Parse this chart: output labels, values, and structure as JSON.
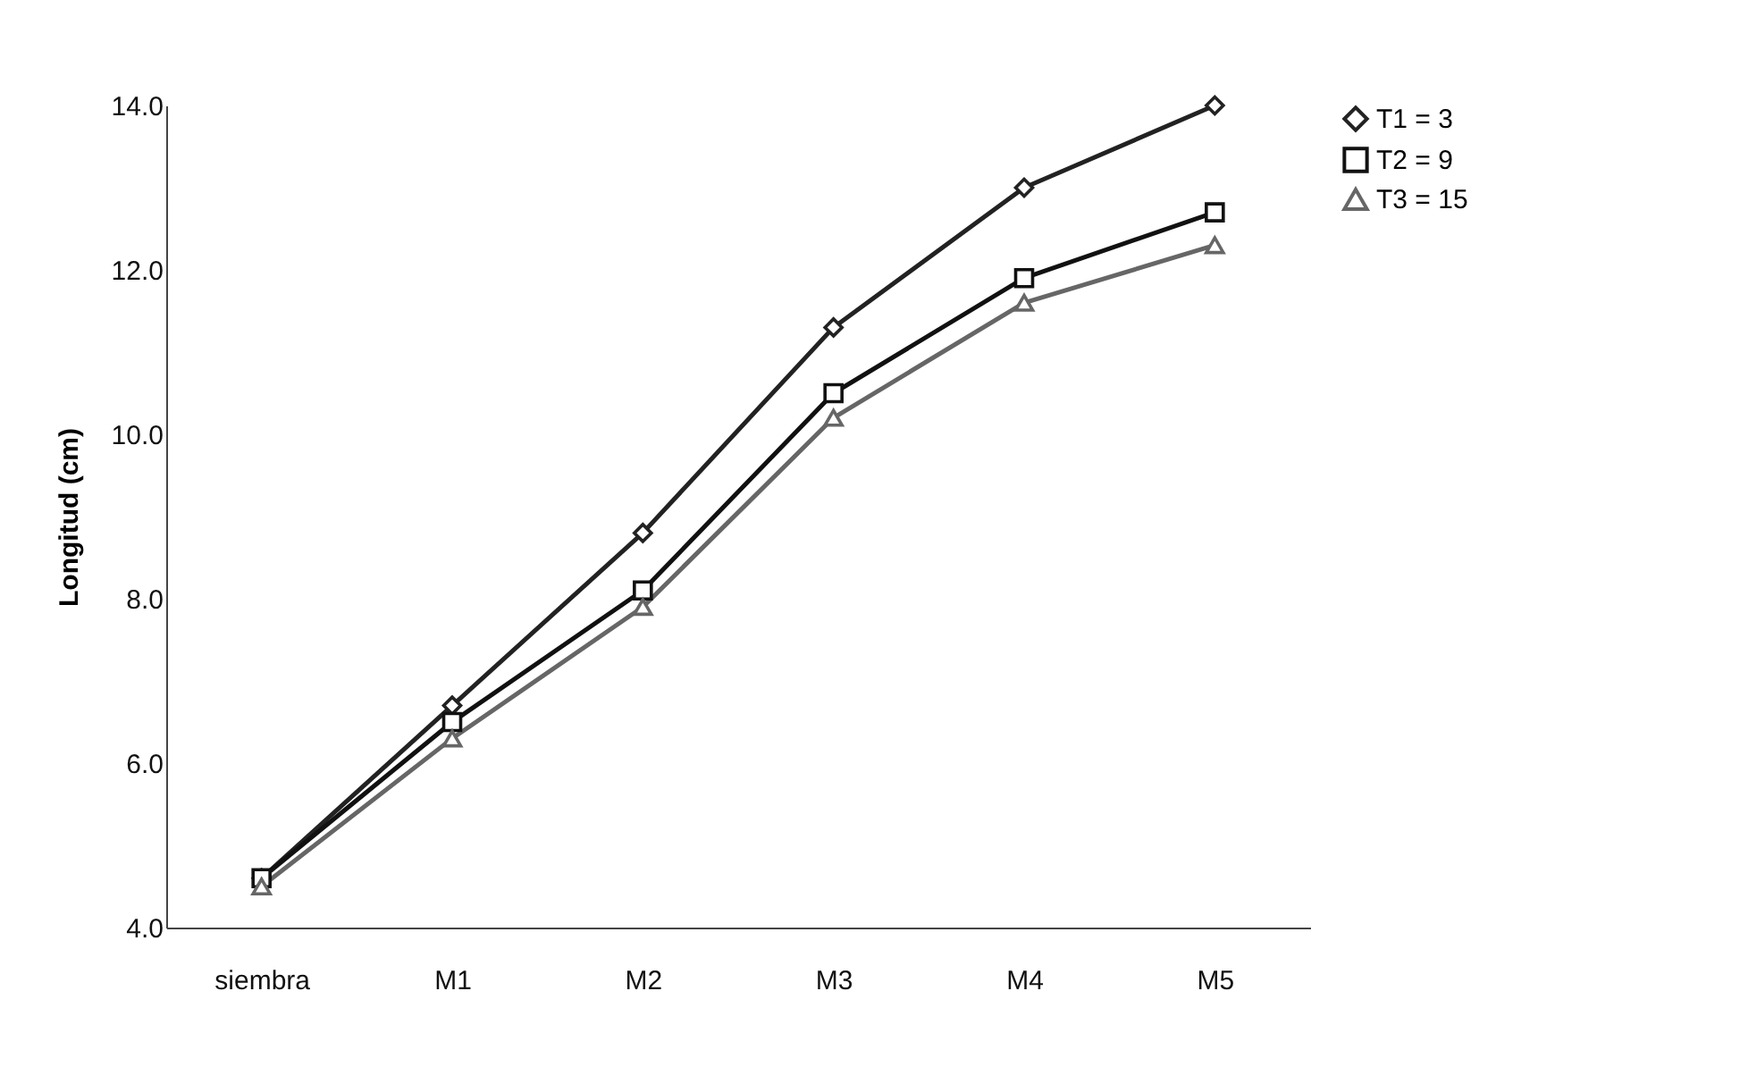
{
  "chart_data": {
    "type": "line",
    "ylabel": "Longitud (cm)",
    "categories": [
      "siembra",
      "M1",
      "M2",
      "M3",
      "M4",
      "M5"
    ],
    "series": [
      {
        "name": "T1 = 3",
        "color": "#222222",
        "marker": "diamond",
        "values": [
          4.6,
          6.7,
          8.8,
          11.3,
          13.0,
          14.0
        ]
      },
      {
        "name": "T2 = 9",
        "color": "#111111",
        "marker": "square",
        "values": [
          4.6,
          6.5,
          8.1,
          10.5,
          11.9,
          12.7
        ]
      },
      {
        "name": "T3 = 15",
        "color": "#666666",
        "marker": "triangle",
        "values": [
          4.5,
          6.3,
          7.9,
          10.2,
          11.6,
          12.3
        ]
      }
    ],
    "ylim": [
      4.0,
      14.0
    ],
    "yticks": [
      {
        "value": 4,
        "label": "4.0"
      },
      {
        "value": 6,
        "label": "6.0"
      },
      {
        "value": 8,
        "label": "8.0"
      },
      {
        "value": 10,
        "label": "10.0"
      },
      {
        "value": 12,
        "label": "12.0"
      },
      {
        "value": 14,
        "label": "14.0"
      }
    ],
    "grid": false,
    "legend": "right"
  }
}
